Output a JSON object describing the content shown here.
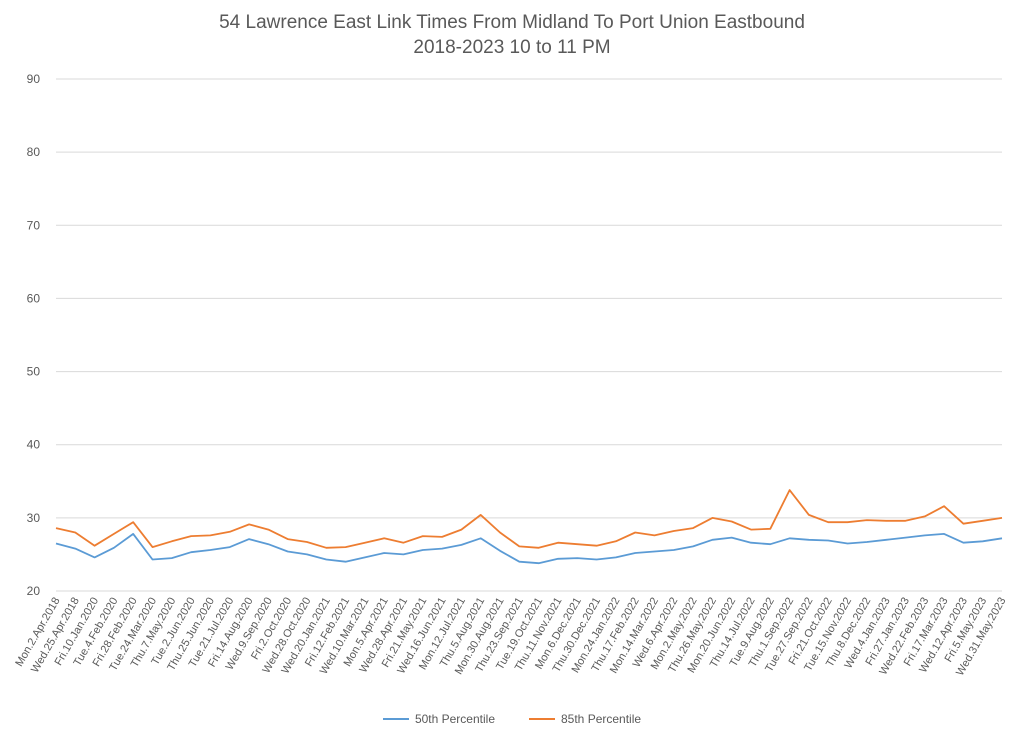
{
  "colors": {
    "p50": "#5B9BD5",
    "p85": "#ED7D31",
    "grid": "#D9D9D9",
    "text": "#595959"
  },
  "chart_data": {
    "type": "line",
    "title": "54 Lawrence East Link Times From Midland To Port Union Eastbound",
    "subtitle": "2018-2023 10 to 11 PM",
    "xlabel": "",
    "ylabel": "",
    "ylim": [
      20,
      90
    ],
    "yticks": [
      20,
      30,
      40,
      50,
      60,
      70,
      80,
      90
    ],
    "grid": true,
    "legend_position": "bottom",
    "categories": [
      "Mon.2.Apr.2018",
      "Wed.25.Apr.2018",
      "Fri.10.Jan.2020",
      "Tue.4.Feb.2020",
      "Fri.28.Feb.2020",
      "Tue.24.Mar.2020",
      "Thu.7.May.2020",
      "Tue.2.Jun.2020",
      "Thu.25.Jun.2020",
      "Tue.21.Jul.2020",
      "Fri.14.Aug.2020",
      "Wed.9.Sep.2020",
      "Fri.2.Oct.2020",
      "Wed.28.Oct.2020",
      "Wed.20.Jan.2021",
      "Fri.12.Feb.2021",
      "Wed.10.Mar.2021",
      "Mon.5.Apr.2021",
      "Wed.28.Apr.2021",
      "Fri.21.May.2021",
      "Wed.16.Jun.2021",
      "Mon.12.Jul.2021",
      "Thu.5.Aug.2021",
      "Mon.30.Aug.2021",
      "Thu.23.Sep.2021",
      "Tue.19.Oct.2021",
      "Thu.11.Nov.2021",
      "Mon.6.Dec.2021",
      "Thu.30.Dec.2021",
      "Mon.24.Jan.2022",
      "Thu.17.Feb.2022",
      "Mon.14.Mar.2022",
      "Wed.6.Apr.2022",
      "Mon.2.May.2022",
      "Thu.26.May.2022",
      "Mon.20.Jun.2022",
      "Thu.14.Jul.2022",
      "Tue.9.Aug.2022",
      "Thu.1.Sep.2022",
      "Tue.27.Sep.2022",
      "Fri.21.Oct.2022",
      "Tue.15.Nov.2022",
      "Thu.8.Dec.2022",
      "Wed.4.Jan.2023",
      "Fri.27.Jan.2023",
      "Wed.22.Feb.2023",
      "Fri.17.Mar.2023",
      "Wed.12.Apr.2023",
      "Fri.5.May.2023",
      "Wed.31.May.2023"
    ],
    "series": [
      {
        "name": "50th Percentile",
        "values": [
          26.5,
          25.8,
          24.6,
          25.9,
          27.8,
          24.3,
          24.5,
          25.3,
          25.6,
          26.0,
          27.1,
          26.4,
          25.4,
          25.0,
          24.3,
          24.0,
          24.6,
          25.2,
          25.0,
          25.6,
          25.8,
          26.3,
          27.2,
          25.5,
          24.0,
          23.8,
          24.4,
          24.5,
          24.3,
          24.6,
          25.2,
          25.4,
          25.6,
          26.1,
          27.0,
          27.3,
          26.6,
          26.4,
          27.2,
          27.0,
          26.9,
          26.5,
          26.7,
          27.0,
          27.3,
          27.6,
          27.8,
          26.6,
          26.8,
          27.2
        ]
      },
      {
        "name": "85th Percentile",
        "values": [
          28.6,
          28.0,
          26.2,
          27.8,
          29.4,
          26.0,
          26.8,
          27.5,
          27.6,
          28.1,
          29.1,
          28.4,
          27.1,
          26.7,
          25.9,
          26.0,
          26.6,
          27.2,
          26.6,
          27.5,
          27.4,
          28.4,
          30.4,
          28.0,
          26.1,
          25.9,
          26.6,
          26.4,
          26.2,
          26.8,
          28.0,
          27.6,
          28.2,
          28.6,
          30.0,
          29.5,
          28.4,
          28.5,
          33.8,
          30.4,
          29.4,
          29.4,
          29.7,
          29.6,
          29.6,
          30.2,
          31.6,
          29.2,
          29.6,
          30.0
        ]
      }
    ]
  }
}
